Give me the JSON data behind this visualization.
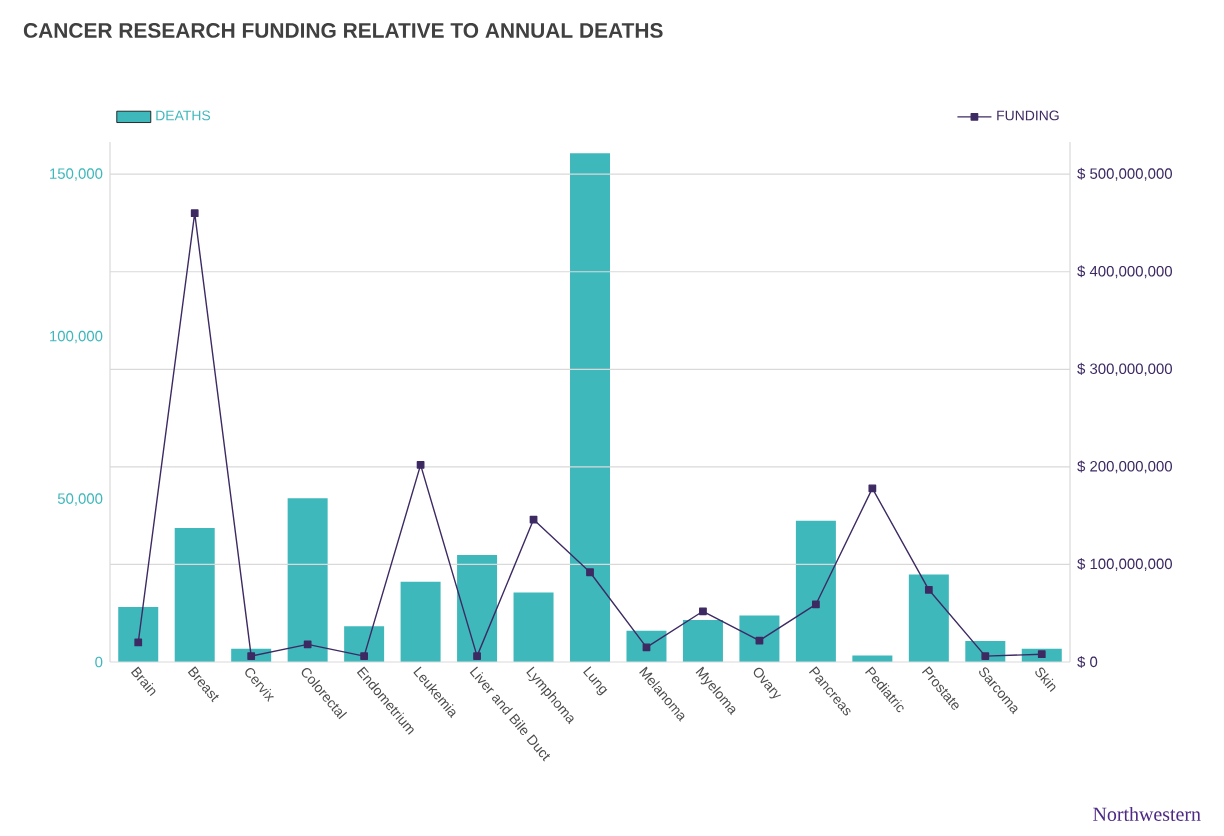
{
  "chart_data": {
    "type": "bar",
    "title": "CANCER RESEARCH FUNDING RELATIVE TO ANNUAL DEATHS",
    "categories": [
      "Brain",
      "Breast",
      "Cervix",
      "Colorectal",
      "Endometrium",
      "Leukemia",
      "Liver and Bile Duct",
      "Lymphoma",
      "Lung",
      "Melanoma",
      "Myeloma",
      "Ovary",
      "Pancreas",
      "Pediatric",
      "Prostate",
      "Sarcoma",
      "Skin"
    ],
    "series": [
      {
        "name": "DEATHS",
        "color": "#3fb8bc",
        "values": [
          16900,
          41200,
          4100,
          50400,
          11000,
          24700,
          32900,
          21400,
          156500,
          9600,
          12900,
          14300,
          43500,
          2000,
          26900,
          6500,
          4100
        ]
      },
      {
        "name": "FUNDING",
        "type": "line",
        "axis": "y2",
        "color": "#3d2a63",
        "marker": "square",
        "line_style": "solid",
        "values": [
          20000000,
          460000000,
          6000000,
          18000000,
          6000000,
          202000000,
          6000000,
          146000000,
          92000000,
          15000000,
          52000000,
          22000000,
          59000000,
          178000000,
          74000000,
          6000000,
          8000000
        ]
      }
    ],
    "ylim": [
      0,
      160000
    ],
    "yticks": [
      {
        "value": 0,
        "label": "0"
      },
      {
        "value": 50000,
        "label": "50,000"
      },
      {
        "value": 100000,
        "label": "100,000"
      },
      {
        "value": 150000,
        "label": "150,000"
      }
    ],
    "y2lim": [
      0,
      533000000
    ],
    "y2ticks": [
      {
        "value": 0,
        "label": "$ 0"
      },
      {
        "value": 100000000,
        "label": "$ 100,000,000"
      },
      {
        "value": 200000000,
        "label": "$ 200,000,000"
      },
      {
        "value": 300000000,
        "label": "$ 300,000,000"
      },
      {
        "value": 400000000,
        "label": "$ 400,000,000"
      },
      {
        "value": 500000000,
        "label": "$ 500,000,000"
      }
    ],
    "grid": "y2",
    "legend": "top",
    "annotations": [
      "Northwestern"
    ]
  }
}
